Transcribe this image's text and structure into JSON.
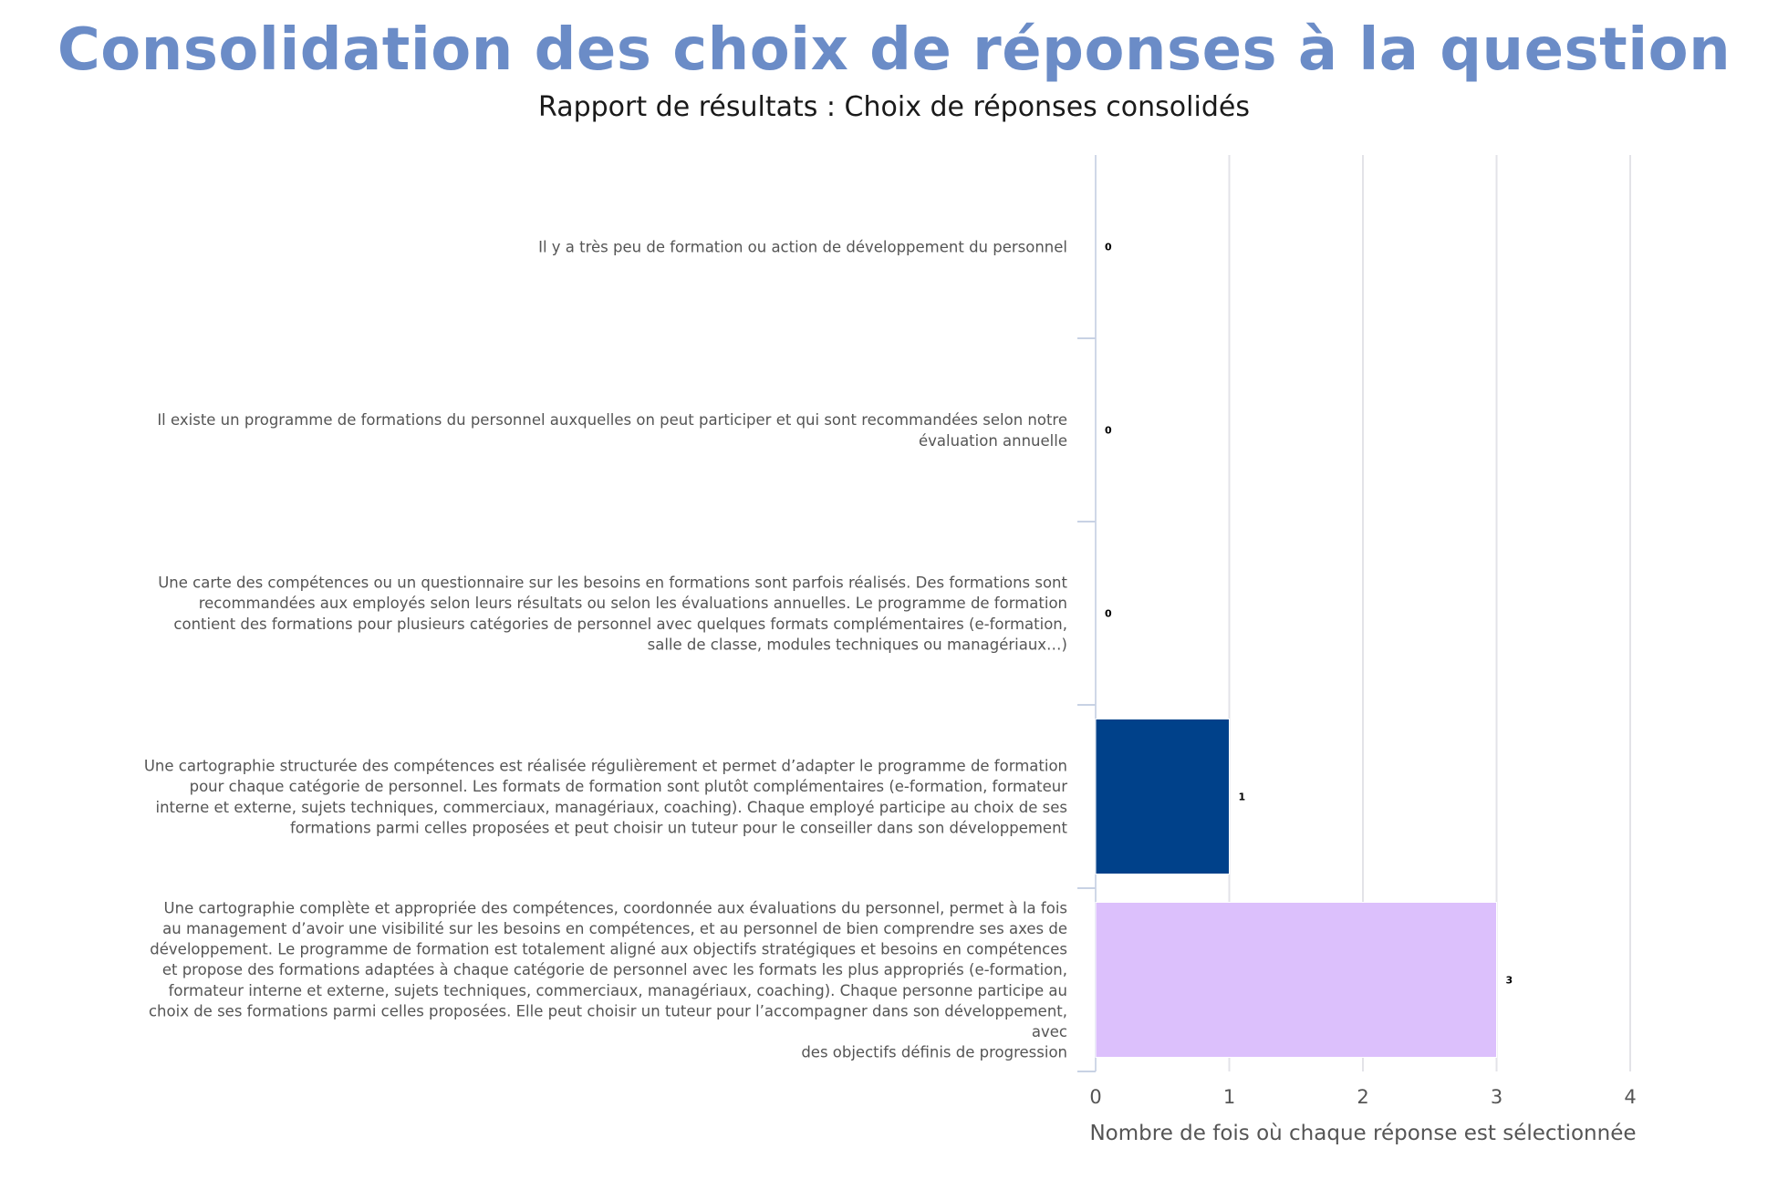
{
  "title": "Consolidation des choix de réponses à la question",
  "subtitle": "Rapport de résultats : Choix de réponses consolidés",
  "chart_data": {
    "type": "bar",
    "orientation": "horizontal",
    "categories": [
      [
        "Il y a très peu de formation ou action de développement du personnel"
      ],
      [
        "Il existe un programme de formations du personnel auxquelles on peut participer et qui sont recommandées selon notre",
        "évaluation annuelle"
      ],
      [
        "Une carte des compétences ou un questionnaire sur les besoins en formations sont parfois réalisés. Des formations sont",
        "recommandées aux employés selon leurs résultats ou selon les évaluations annuelles. Le programme de formation",
        "contient des formations pour plusieurs catégories de personnel avec quelques formats complémentaires (e-formation,",
        "salle de classe, modules techniques ou managériaux…)"
      ],
      [
        "Une cartographie structurée des compétences est réalisée régulièrement et permet d’adapter le programme de formation",
        "pour chaque catégorie de personnel. Les formats de formation sont plutôt complémentaires (e-formation, formateur",
        "interne et externe, sujets techniques, commerciaux, managériaux, coaching). Chaque employé participe au choix de ses",
        "formations parmi celles proposées et peut choisir un tuteur pour le conseiller dans son développement"
      ],
      [
        "Une cartographie complète et appropriée des compétences, coordonnée aux évaluations du personnel, permet à la fois",
        "au management d’avoir une visibilité sur les besoins en compétences, et au personnel de bien comprendre ses axes de",
        "développement. Le programme de formation est totalement aligné aux objectifs stratégiques et besoins en compétences",
        "et propose des formations adaptées à chaque catégorie de personnel avec les formats les plus appropriés (e-formation,",
        "formateur interne et externe, sujets techniques, commerciaux, managériaux, coaching). Chaque personne participe au",
        "choix de ses formations parmi celles proposées. Elle peut choisir un tuteur pour l’accompagner dans son développement,",
        "avec",
        "des objectifs définis de progression"
      ]
    ],
    "values": [
      0,
      0,
      0,
      1,
      3
    ],
    "value_labels": [
      "0",
      "0",
      "0",
      "1",
      "3"
    ],
    "bar_colors": [
      "#6b8cc7",
      "#6b8cc7",
      "#6b8cc7",
      "#00418a",
      "#dcc0fc"
    ],
    "xlabel": "Nombre de fois où chaque réponse est sélectionnée",
    "xlim": [
      0,
      4
    ],
    "xticks": [
      0,
      1,
      2,
      3,
      4
    ],
    "xtick_labels": [
      "0",
      "1",
      "2",
      "3",
      "4"
    ],
    "grid": true,
    "legend": false
  }
}
